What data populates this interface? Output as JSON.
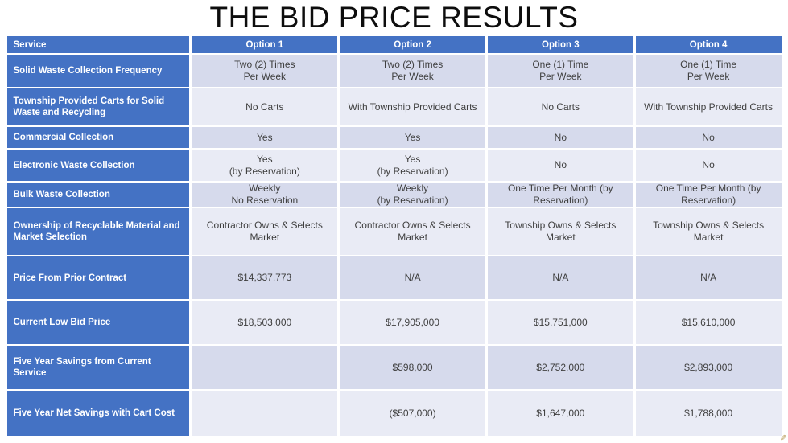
{
  "title": "THE BID PRICE RESULTS",
  "colors": {
    "header_blue": "#4472C4",
    "band_dark": "#D6DAEC",
    "band_light": "#E9EBF5",
    "cell_text": "#3F3F3F"
  },
  "table": {
    "columns": [
      "Service",
      "Option 1",
      "Option 2",
      "Option 3",
      "Option 4"
    ],
    "rows": [
      {
        "label": "Solid Waste Collection Frequency",
        "values": [
          "Two (2) Times\nPer Week",
          "Two (2) Times\nPer Week",
          "One (1) Time\nPer Week",
          "One (1) Time\nPer Week"
        ]
      },
      {
        "label": "Township Provided Carts for Solid Waste and Recycling",
        "values": [
          "No Carts",
          "With Township Provided Carts",
          "No Carts",
          "With Township Provided Carts"
        ]
      },
      {
        "label": "Commercial Collection",
        "values": [
          "Yes",
          "Yes",
          "No",
          "No"
        ]
      },
      {
        "label": "Electronic Waste Collection",
        "values": [
          "Yes\n(by Reservation)",
          "Yes\n(by Reservation)",
          "No",
          "No"
        ]
      },
      {
        "label": "Bulk Waste Collection",
        "values": [
          "Weekly\nNo Reservation",
          "Weekly\n(by Reservation)",
          "One Time Per Month (by\nReservation)",
          "One Time Per Month (by\nReservation)"
        ]
      },
      {
        "label": "Ownership of Recyclable Material and Market Selection",
        "values": [
          "Contractor Owns & Selects\nMarket",
          "Contractor Owns & Selects\nMarket",
          "Township Owns & Selects\nMarket",
          "Township Owns & Selects Market"
        ]
      },
      {
        "label": "Price From Prior Contract",
        "values": [
          "$14,337,773",
          "N/A",
          "N/A",
          "N/A"
        ]
      },
      {
        "label": "Current Low Bid Price",
        "values": [
          "$18,503,000",
          "$17,905,000",
          "$15,751,000",
          "$15,610,000"
        ]
      },
      {
        "label": "Five Year Savings from Current Service",
        "values": [
          "",
          "$598,000",
          "$2,752,000",
          "$2,893,000"
        ]
      },
      {
        "label": "Five Year Net Savings with Cart Cost",
        "values": [
          "",
          "($507,000)",
          "$1,647,000",
          "$1,788,000"
        ]
      }
    ]
  },
  "pencil_artifact_glyph": "✎"
}
